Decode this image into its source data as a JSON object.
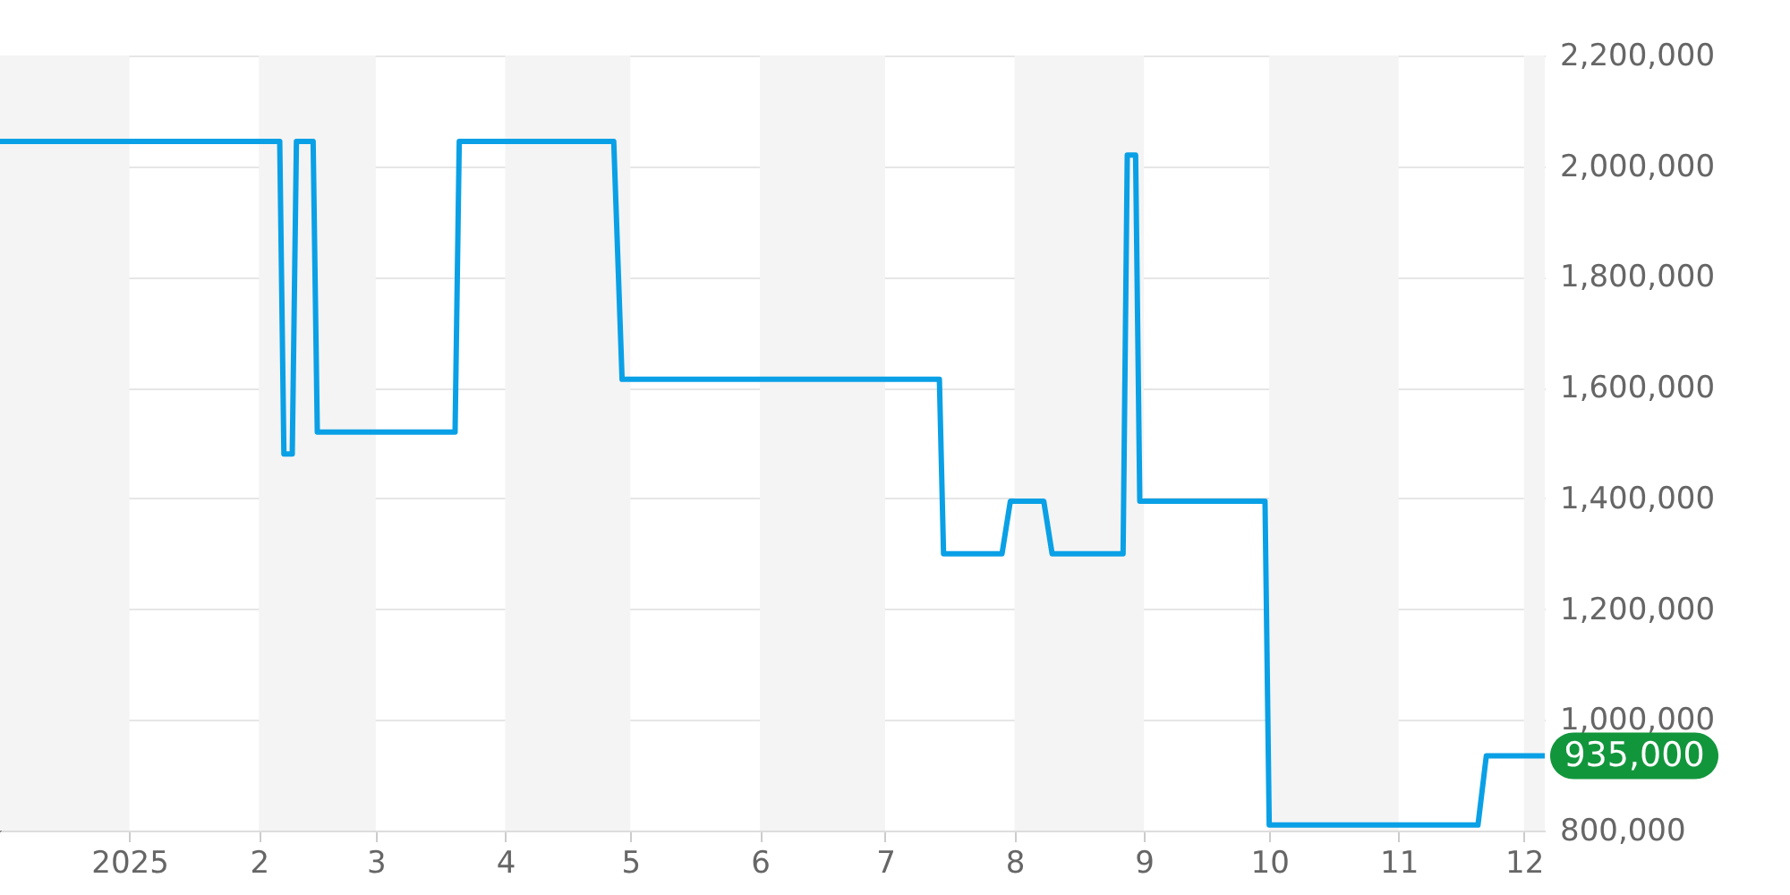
{
  "chart_data": {
    "type": "line",
    "xlim": [
      "2024-12-01",
      "2025-12-06"
    ],
    "ylim": [
      800000,
      2200000
    ],
    "xticks": [
      {
        "value": "2025-01-01",
        "label": "2025"
      },
      {
        "value": "2025-02-01",
        "label": "2"
      },
      {
        "value": "2025-03-01",
        "label": "3"
      },
      {
        "value": "2025-04-01",
        "label": "4"
      },
      {
        "value": "2025-05-01",
        "label": "5"
      },
      {
        "value": "2025-06-01",
        "label": "6"
      },
      {
        "value": "2025-07-01",
        "label": "7"
      },
      {
        "value": "2025-08-01",
        "label": "8"
      },
      {
        "value": "2025-09-01",
        "label": "9"
      },
      {
        "value": "2025-10-01",
        "label": "10"
      },
      {
        "value": "2025-11-01",
        "label": "11"
      },
      {
        "value": "2025-12-01",
        "label": "12"
      }
    ],
    "yticks": [
      {
        "value": 800000,
        "label": "800,000"
      },
      {
        "value": 1000000,
        "label": "1,000,000"
      },
      {
        "value": 1200000,
        "label": "1,200,000"
      },
      {
        "value": 1400000,
        "label": "1,400,000"
      },
      {
        "value": 1600000,
        "label": "1,600,000"
      },
      {
        "value": 1800000,
        "label": "1,800,000"
      },
      {
        "value": 2000000,
        "label": "2,000,000"
      },
      {
        "value": 2200000,
        "label": "2,200,000"
      }
    ],
    "grid": "y",
    "bands": [
      {
        "axis": "x",
        "from": "2024-12-01",
        "to": "2025-01-01",
        "color": "#f4f4f4"
      },
      {
        "axis": "x",
        "from": "2025-02-01",
        "to": "2025-03-01",
        "color": "#f4f4f4"
      },
      {
        "axis": "x",
        "from": "2025-04-01",
        "to": "2025-05-01",
        "color": "#f4f4f4"
      },
      {
        "axis": "x",
        "from": "2025-06-01",
        "to": "2025-07-01",
        "color": "#f4f4f4"
      },
      {
        "axis": "x",
        "from": "2025-08-01",
        "to": "2025-09-01",
        "color": "#f4f4f4"
      },
      {
        "axis": "x",
        "from": "2025-10-01",
        "to": "2025-11-01",
        "color": "#f4f4f4"
      },
      {
        "axis": "x",
        "from": "2025-12-01",
        "to": "2025-12-06",
        "color": "#f4f4f4"
      }
    ],
    "series": [
      {
        "color": "#0aa0e6",
        "x": [
          "2024-12-01",
          "2025-02-06",
          "2025-02-07",
          "2025-02-09",
          "2025-02-10",
          "2025-02-14",
          "2025-02-15",
          "2025-03-20",
          "2025-03-21",
          "2025-04-27",
          "2025-04-29",
          "2025-07-14",
          "2025-07-15",
          "2025-07-29",
          "2025-07-31",
          "2025-08-08",
          "2025-08-10",
          "2025-08-27",
          "2025-08-28",
          "2025-08-30",
          "2025-08-31",
          "2025-09-30",
          "2025-10-01",
          "2025-11-20",
          "2025-11-22",
          "2025-12-06"
        ],
        "values": [
          2045000,
          2045000,
          1480000,
          1480000,
          2045000,
          2045000,
          1520000,
          1520000,
          2045000,
          2045000,
          1615000,
          1615000,
          1300000,
          1300000,
          1395000,
          1395000,
          1300000,
          1300000,
          2020000,
          2020000,
          1395000,
          1395000,
          810000,
          810000,
          935000,
          935000
        ]
      }
    ],
    "annotations": [
      {
        "text": "935,000",
        "x": "2025-12-06",
        "y": 935000
      }
    ]
  }
}
